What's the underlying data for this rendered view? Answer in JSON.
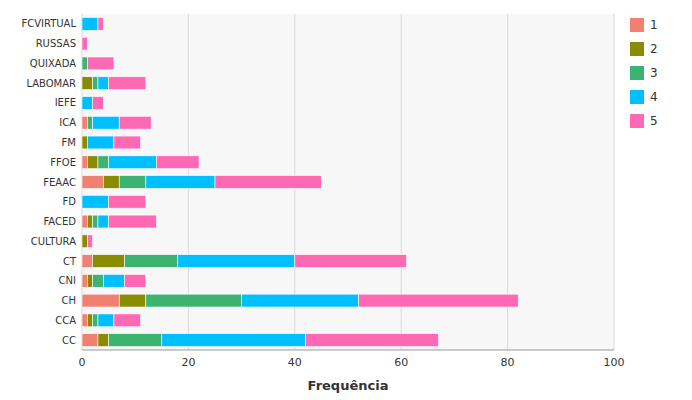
{
  "chart_data": {
    "type": "bar",
    "orientation": "horizontal",
    "stacked": true,
    "xlabel": "Frequência",
    "categories": [
      "FCVIRTUAL",
      "RUSSAS",
      "QUIXADA",
      "LABOMAR",
      "IEFE",
      "ICA",
      "FM",
      "FFOE",
      "FEAAC",
      "FD",
      "FACED",
      "CULTURA",
      "CT",
      "CNI",
      "CH",
      "CCA",
      "CC"
    ],
    "series": [
      {
        "name": "1",
        "color": "#F08070",
        "values": [
          0,
          0,
          0,
          0,
          0,
          1,
          0,
          1,
          4,
          0,
          1,
          0,
          2,
          1,
          7,
          1,
          3
        ]
      },
      {
        "name": "2",
        "color": "#8B8B00",
        "values": [
          0,
          0,
          0,
          2,
          0,
          0,
          1,
          2,
          3,
          0,
          1,
          1,
          6,
          1,
          5,
          1,
          2
        ]
      },
      {
        "name": "3",
        "color": "#3CB371",
        "values": [
          0,
          0,
          1,
          1,
          0,
          1,
          0,
          2,
          5,
          0,
          1,
          0,
          10,
          2,
          18,
          1,
          10
        ]
      },
      {
        "name": "4",
        "color": "#00BFFF",
        "values": [
          3,
          0,
          0,
          2,
          2,
          5,
          5,
          9,
          13,
          5,
          2,
          0,
          22,
          4,
          22,
          3,
          27
        ]
      },
      {
        "name": "5",
        "color": "#FF69B4",
        "values": [
          1,
          1,
          5,
          7,
          2,
          6,
          5,
          8,
          20,
          7,
          9,
          1,
          21,
          4,
          30,
          5,
          25
        ]
      }
    ],
    "xlim": [
      0,
      100
    ],
    "xticks": [
      0,
      20,
      40,
      60,
      80,
      100
    ],
    "grid": true,
    "legend": "right"
  }
}
